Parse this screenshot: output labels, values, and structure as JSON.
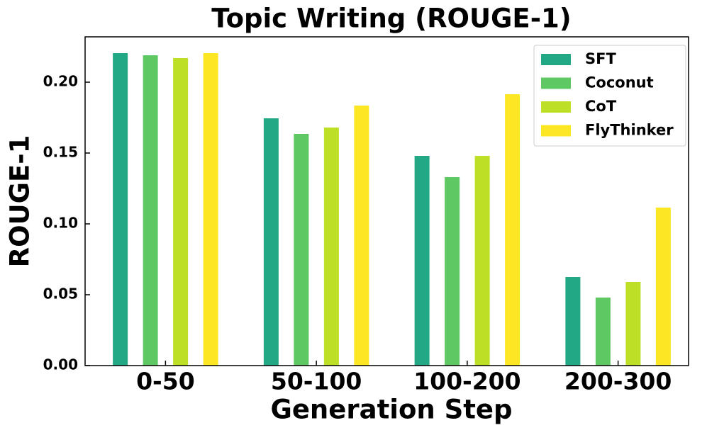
{
  "chart_data": {
    "type": "bar",
    "title": "Topic Writing (ROUGE-1)",
    "x_label": "Generation Step",
    "y_label": "ROUGE-1",
    "categories": [
      "0-50",
      "50-100",
      "100-200",
      "200-300"
    ],
    "series": [
      {
        "name": "SFT",
        "color": "#22a884",
        "values": [
          0.2205,
          0.1745,
          0.148,
          0.0625
        ]
      },
      {
        "name": "Coconut",
        "color": "#5ec962",
        "values": [
          0.219,
          0.1635,
          0.133,
          0.048
        ]
      },
      {
        "name": "CoT",
        "color": "#bddf26",
        "values": [
          0.217,
          0.168,
          0.148,
          0.059
        ]
      },
      {
        "name": "FlyThinker",
        "color": "#fde725",
        "values": [
          0.2205,
          0.1835,
          0.1915,
          0.1115
        ]
      }
    ],
    "ylim": [
      0,
      0.232
    ],
    "yticks": [
      {
        "value": 0,
        "label": "0.00"
      },
      {
        "value": 0.05,
        "label": "0.05"
      },
      {
        "value": 0.1,
        "label": "0.10"
      },
      {
        "value": 0.15,
        "label": "0.15"
      },
      {
        "value": 0.2,
        "label": "0.20"
      }
    ],
    "legend": "upper right",
    "grid": false
  }
}
